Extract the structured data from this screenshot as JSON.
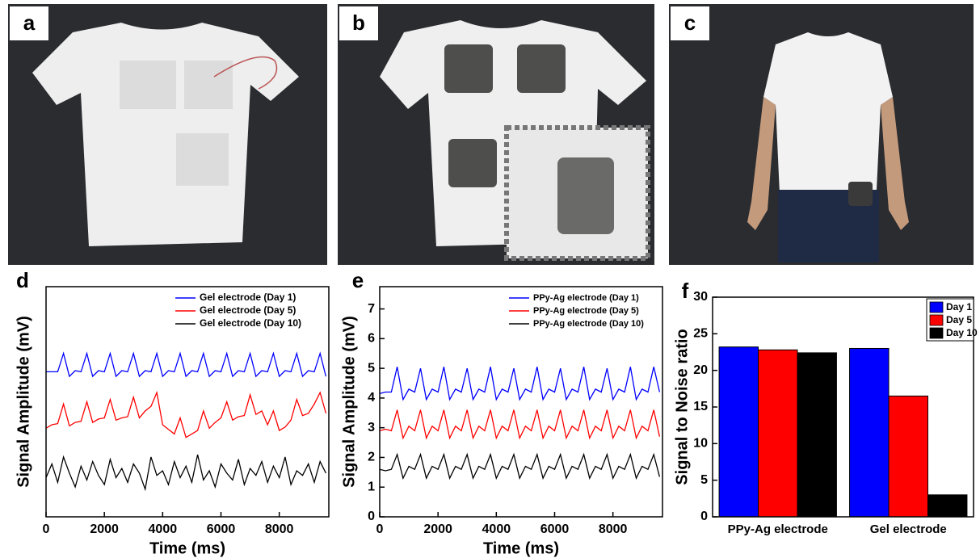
{
  "panel_labels": [
    "a",
    "b",
    "c"
  ],
  "chart_data": [
    {
      "type": "line",
      "label": "d",
      "xlabel": "Time (ms)",
      "ylabel": "Signal Amplitude (mV)",
      "xlim": [
        0,
        9700
      ],
      "xticks": [
        0,
        2000,
        4000,
        6000,
        8000
      ],
      "ylim": [
        0,
        10
      ],
      "legend": "upper right",
      "grid": false,
      "x": [
        0,
        200,
        400,
        600,
        800,
        1000,
        1200,
        1400,
        1600,
        1800,
        2000,
        2200,
        2400,
        2600,
        2800,
        3000,
        3200,
        3400,
        3600,
        3800,
        4000,
        4200,
        4400,
        4600,
        4800,
        5000,
        5200,
        5400,
        5600,
        5800,
        6000,
        6200,
        6400,
        6600,
        6800,
        7000,
        7200,
        7400,
        7600,
        7800,
        8000,
        8200,
        8400,
        8600,
        8800,
        9000,
        9200,
        9400,
        9600
      ],
      "series": [
        {
          "name": "Gel electrode (Day 1)",
          "color": "#0000ff",
          "values": [
            6.3,
            6.3,
            6.3,
            7.1,
            6.1,
            6.35,
            6.3,
            7.1,
            6.1,
            6.35,
            6.3,
            7.1,
            6.1,
            6.35,
            6.3,
            7.1,
            6.1,
            6.35,
            6.3,
            7.1,
            6.1,
            6.35,
            6.3,
            7.1,
            6.1,
            6.35,
            6.3,
            7.1,
            6.1,
            6.35,
            6.3,
            7.1,
            6.1,
            6.35,
            6.3,
            7.1,
            6.1,
            6.35,
            6.3,
            7.1,
            6.1,
            6.35,
            6.3,
            7.1,
            6.1,
            6.35,
            6.3,
            7.1,
            6.1
          ]
        },
        {
          "name": "Gel electrode (Day 5)",
          "color": "#ff0000",
          "values": [
            3.85,
            4.0,
            4.05,
            4.9,
            3.95,
            4.1,
            4.15,
            5.0,
            4.1,
            4.25,
            4.3,
            5.1,
            4.2,
            4.3,
            4.35,
            5.2,
            4.3,
            4.6,
            4.8,
            5.4,
            4.0,
            3.8,
            3.6,
            4.3,
            3.45,
            3.6,
            3.75,
            4.6,
            3.85,
            4.1,
            4.3,
            5.0,
            4.2,
            4.35,
            4.4,
            5.3,
            4.45,
            4.6,
            4.0,
            4.6,
            3.75,
            3.9,
            4.2,
            5.1,
            4.4,
            4.5,
            4.9,
            5.4,
            4.5
          ]
        },
        {
          "name": "Gel electrode (Day 10)",
          "color": "#000000",
          "values": [
            1.7,
            2.3,
            1.5,
            2.6,
            1.9,
            1.3,
            2.2,
            1.6,
            2.4,
            1.8,
            1.4,
            2.5,
            1.7,
            2.1,
            1.5,
            2.3,
            1.9,
            1.2,
            2.6,
            1.8,
            2.0,
            1.4,
            2.4,
            1.7,
            2.2,
            1.5,
            2.7,
            1.6,
            2.0,
            1.3,
            2.3,
            1.9,
            1.6,
            2.5,
            1.4,
            2.1,
            1.8,
            2.4,
            1.5,
            2.2,
            1.7,
            2.6,
            1.4,
            2.0,
            1.8,
            2.3,
            1.5,
            2.4,
            1.9
          ]
        }
      ]
    },
    {
      "type": "line",
      "label": "e",
      "xlabel": "Time (ms)",
      "ylabel": "Signal Amplitude (mV)",
      "xlim": [
        0,
        9700
      ],
      "xticks": [
        0,
        2000,
        4000,
        6000,
        8000
      ],
      "ylim": [
        0,
        7.75
      ],
      "yticks": [
        0,
        1,
        2,
        3,
        4,
        5,
        6,
        7
      ],
      "legend": "upper right",
      "grid": false,
      "x": [
        0,
        200,
        400,
        600,
        800,
        1000,
        1200,
        1400,
        1600,
        1800,
        2000,
        2200,
        2400,
        2600,
        2800,
        3000,
        3200,
        3400,
        3600,
        3800,
        4000,
        4200,
        4400,
        4600,
        4800,
        5000,
        5200,
        5400,
        5600,
        5800,
        6000,
        6200,
        6400,
        6600,
        6800,
        7000,
        7200,
        7400,
        7600,
        7800,
        8000,
        8200,
        8400,
        8600,
        8800,
        9000,
        9200,
        9400,
        9600
      ],
      "series": [
        {
          "name": "PPy-Ag electrode (Day 1)",
          "color": "#0000ff",
          "values": [
            4.15,
            4.2,
            4.2,
            5.05,
            3.95,
            4.3,
            4.2,
            5.0,
            3.95,
            4.3,
            4.2,
            5.05,
            3.95,
            4.3,
            4.2,
            5.0,
            3.95,
            4.3,
            4.2,
            5.05,
            3.95,
            4.3,
            4.2,
            5.0,
            3.95,
            4.3,
            4.2,
            5.05,
            3.95,
            4.3,
            4.2,
            5.0,
            3.95,
            4.3,
            4.2,
            5.05,
            3.95,
            4.3,
            4.2,
            5.0,
            3.95,
            4.3,
            4.2,
            5.05,
            3.95,
            4.3,
            4.2,
            5.05,
            4.2
          ]
        },
        {
          "name": "PPy-Ag electrode (Day 5)",
          "color": "#ff0000",
          "values": [
            2.9,
            2.95,
            2.9,
            3.6,
            2.65,
            3.05,
            2.9,
            3.6,
            2.65,
            3.05,
            2.9,
            3.6,
            2.65,
            3.05,
            2.9,
            3.6,
            2.65,
            3.05,
            2.9,
            3.6,
            2.65,
            3.05,
            2.9,
            3.6,
            2.65,
            3.05,
            2.9,
            3.6,
            2.65,
            3.05,
            2.9,
            3.6,
            2.65,
            3.05,
            2.9,
            3.6,
            2.65,
            3.05,
            2.9,
            3.6,
            2.65,
            3.05,
            2.9,
            3.6,
            2.65,
            3.05,
            2.9,
            3.6,
            2.7
          ]
        },
        {
          "name": "PPy-Ag electrode (Day 10)",
          "color": "#000000",
          "values": [
            1.6,
            1.55,
            1.6,
            2.1,
            1.3,
            1.7,
            1.6,
            2.1,
            1.3,
            1.7,
            1.6,
            2.1,
            1.3,
            1.7,
            1.6,
            2.1,
            1.3,
            1.7,
            1.6,
            2.1,
            1.3,
            1.7,
            1.6,
            2.1,
            1.3,
            1.7,
            1.6,
            2.1,
            1.3,
            1.7,
            1.6,
            2.1,
            1.3,
            1.7,
            1.6,
            2.1,
            1.3,
            1.7,
            1.6,
            2.1,
            1.3,
            1.7,
            1.6,
            2.1,
            1.3,
            1.7,
            1.6,
            2.1,
            1.35
          ]
        }
      ]
    },
    {
      "type": "bar",
      "label": "f",
      "ylabel": "Signal to Noise ratio",
      "categories": [
        "PPy-Ag electrode",
        "Gel electrode"
      ],
      "ylim": [
        0,
        30
      ],
      "yticks": [
        0,
        5,
        10,
        15,
        20,
        25,
        30
      ],
      "legend": "upper right",
      "grid": false,
      "series": [
        {
          "name": "Day 1",
          "color": "#0000ff",
          "values": [
            23.2,
            23.0
          ]
        },
        {
          "name": "Day 5",
          "color": "#ff0000",
          "values": [
            22.8,
            16.5
          ]
        },
        {
          "name": "Day 10",
          "color": "#000000",
          "values": [
            22.4,
            3.0
          ]
        }
      ]
    }
  ]
}
